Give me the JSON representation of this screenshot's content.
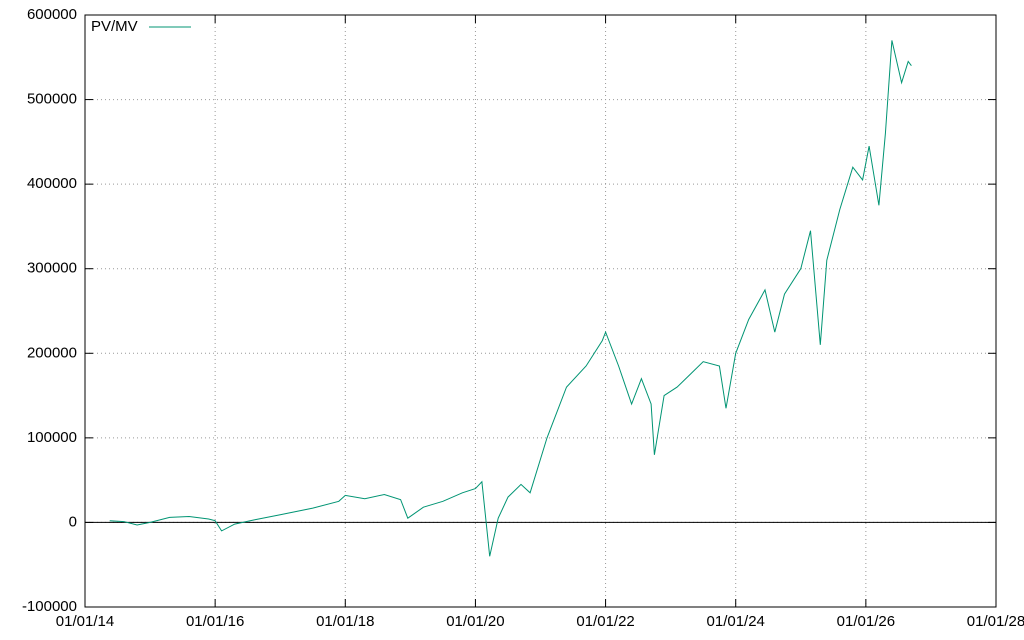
{
  "chart_data": {
    "type": "line",
    "legend": "top left",
    "grid": true,
    "zero_line": true,
    "xlim": [
      2014,
      2028
    ],
    "xticks": [
      {
        "value": 2014,
        "label": "01/01/14"
      },
      {
        "value": 2016,
        "label": "01/01/16"
      },
      {
        "value": 2018,
        "label": "01/01/18"
      },
      {
        "value": 2020,
        "label": "01/01/20"
      },
      {
        "value": 2022,
        "label": "01/01/22"
      },
      {
        "value": 2024,
        "label": "01/01/24"
      },
      {
        "value": 2026,
        "label": "01/01/26"
      },
      {
        "value": 2028,
        "label": "01/01/28"
      }
    ],
    "ylim": [
      -100000,
      600000
    ],
    "yticks": [
      -100000,
      0,
      100000,
      200000,
      300000,
      400000,
      500000,
      600000
    ],
    "x": [
      2014.38,
      2014.6,
      2014.8,
      2015.0,
      2015.3,
      2015.6,
      2015.9,
      2016.0,
      2016.1,
      2016.3,
      2016.6,
      2017.0,
      2017.5,
      2017.9,
      2018.0,
      2018.3,
      2018.6,
      2018.85,
      2018.96,
      2019.2,
      2019.5,
      2019.8,
      2020.0,
      2020.1,
      2020.22,
      2020.35,
      2020.5,
      2020.7,
      2020.84,
      2021.1,
      2021.4,
      2021.7,
      2021.95,
      2022.0,
      2022.2,
      2022.4,
      2022.55,
      2022.7,
      2022.75,
      2022.9,
      2023.1,
      2023.3,
      2023.5,
      2023.75,
      2023.85,
      2024.0,
      2024.2,
      2024.45,
      2024.6,
      2024.75,
      2025.0,
      2025.15,
      2025.3,
      2025.4,
      2025.6,
      2025.8,
      2025.95,
      2026.05,
      2026.2,
      2026.3,
      2026.4,
      2026.55,
      2026.65,
      2026.7
    ],
    "series": [
      {
        "name": "PV/MV",
        "color": "#009473",
        "values": [
          2000,
          1000,
          -3000,
          0,
          6000,
          7000,
          4000,
          2000,
          -10000,
          -2000,
          3000,
          9000,
          17000,
          25000,
          32000,
          28000,
          33000,
          27000,
          5000,
          18000,
          25000,
          35000,
          40000,
          48000,
          -40000,
          5000,
          30000,
          45000,
          35000,
          100000,
          160000,
          185000,
          215000,
          225000,
          185000,
          140000,
          170000,
          140000,
          80000,
          150000,
          160000,
          175000,
          190000,
          185000,
          135000,
          200000,
          240000,
          275000,
          225000,
          270000,
          300000,
          345000,
          210000,
          310000,
          370000,
          420000,
          405000,
          445000,
          375000,
          460000,
          570000,
          520000,
          545000,
          540000
        ]
      }
    ]
  }
}
